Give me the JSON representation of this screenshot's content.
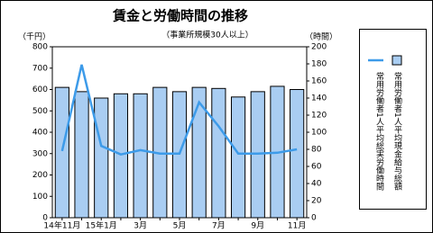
{
  "chart_data": {
    "type": "bar",
    "title": "賃金と労働時間の推移",
    "subtitle": "（事業所規模30人以上）",
    "y_label": "（千円）",
    "y2_label": "（時間）",
    "categories": [
      "14年11月",
      null,
      "15年1月",
      null,
      "3月",
      null,
      "5月",
      null,
      "7月",
      null,
      "9月",
      null,
      "11月"
    ],
    "series": [
      {
        "name": "常用労働者1人平均現金給与総額",
        "type": "bar",
        "color": "#a9cdf2",
        "values": [
          610,
          590,
          560,
          580,
          580,
          610,
          590,
          610,
          605,
          565,
          590,
          615,
          600
        ]
      },
      {
        "name": "常用労働者1人平均総実労働時間",
        "type": "line",
        "axis": "y2",
        "color": "#3d9be9",
        "values": [
          78,
          179,
          84,
          74,
          79,
          75,
          75,
          135,
          107,
          75,
          75,
          76,
          80
        ]
      }
    ],
    "ylim": [
      0,
      800
    ],
    "yticks": [
      0,
      100,
      200,
      300,
      400,
      500,
      600,
      700,
      800
    ],
    "y2lim": [
      0,
      200
    ],
    "y2ticks": [
      0,
      20,
      40,
      60,
      80,
      100,
      120,
      140,
      160,
      180,
      200
    ]
  }
}
